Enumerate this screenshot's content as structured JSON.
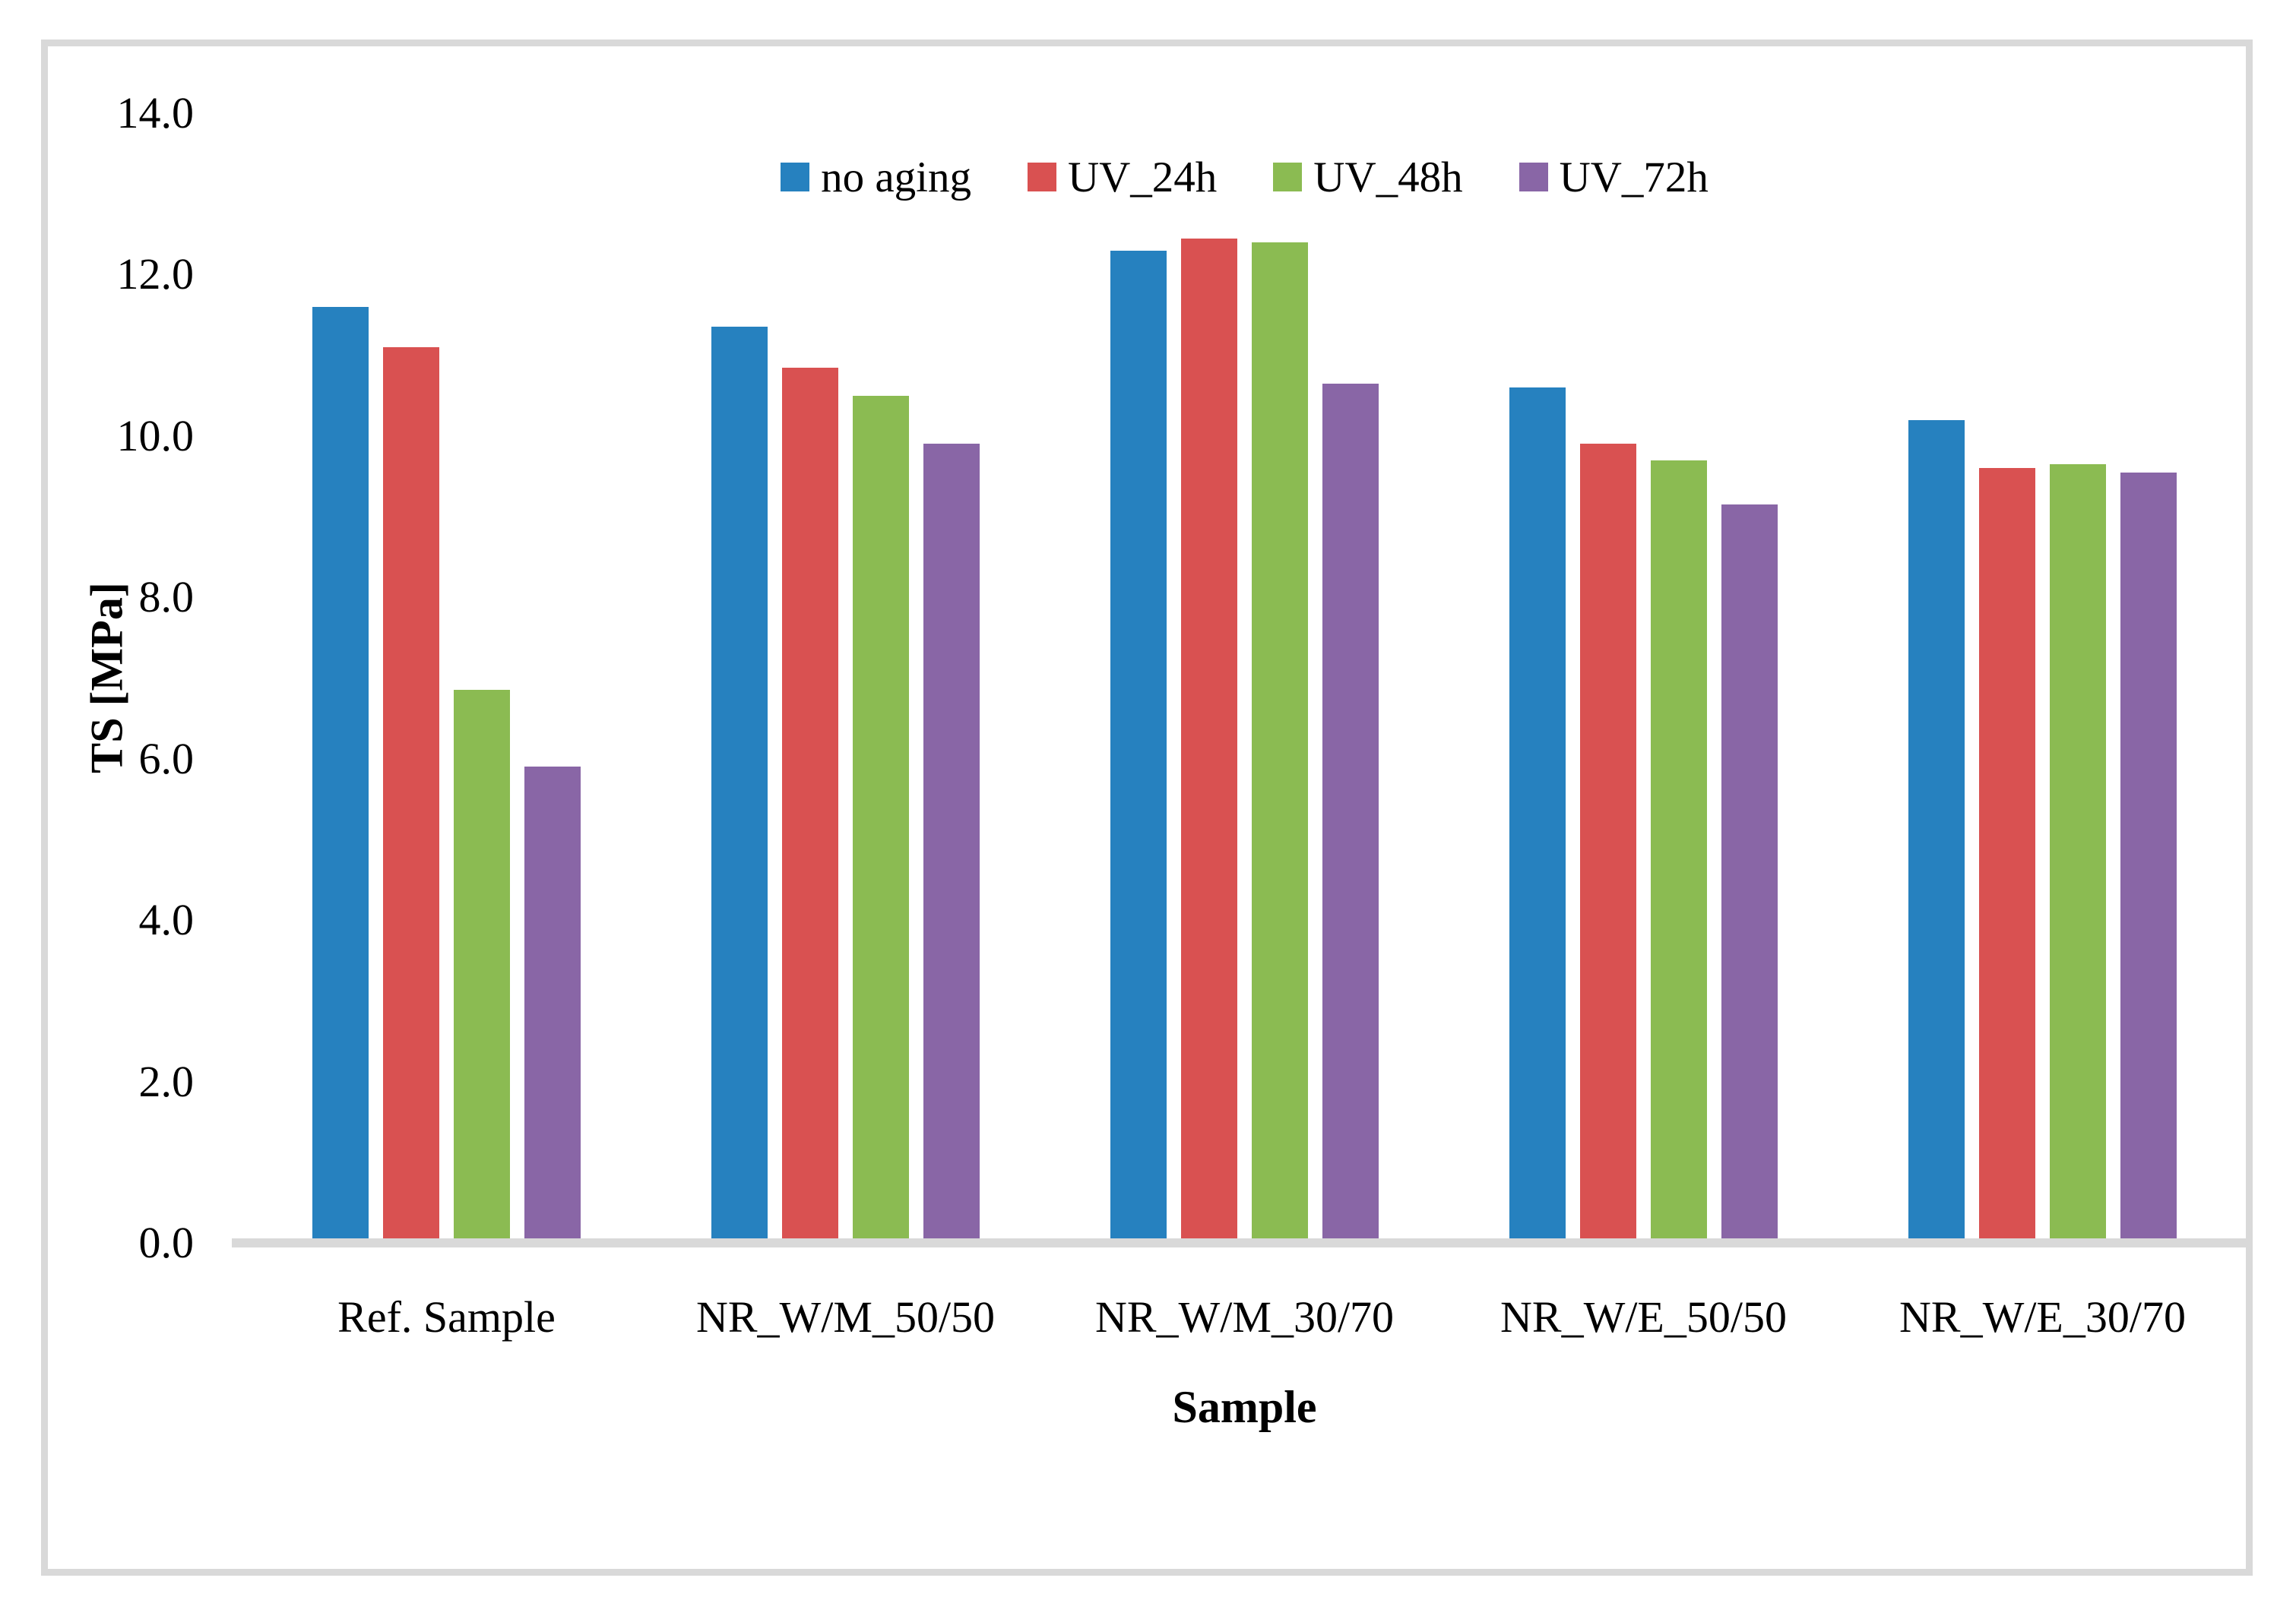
{
  "chart_data": {
    "type": "bar",
    "title": "",
    "xlabel": "Sample",
    "ylabel": "TS [MPa]",
    "ylim": [
      0,
      14.0
    ],
    "ytick_step": 2.0,
    "ytick_labels": [
      "0.0",
      "2.0",
      "4.0",
      "6.0",
      "8.0",
      "10.0",
      "12.0",
      "14.0"
    ],
    "grid": "off",
    "legend_position": "top-center",
    "categories": [
      "Ref. Sample",
      "NR_W/M_50/50",
      "NR_W/M_30/70",
      "NR_W/E_50/50",
      "NR_W/E_30/70"
    ],
    "series": [
      {
        "name": "no aging",
        "color": "#2681bf",
        "values": [
          11.6,
          11.35,
          12.3,
          10.6,
          10.2
        ]
      },
      {
        "name": "UV_24h",
        "color": "#d95151",
        "values": [
          11.1,
          10.85,
          12.45,
          9.9,
          9.6
        ]
      },
      {
        "name": "UV_48h",
        "color": "#8bbb52",
        "values": [
          6.85,
          10.5,
          12.4,
          9.7,
          9.65
        ]
      },
      {
        "name": "UV_72h",
        "color": "#8966a6",
        "values": [
          5.9,
          9.9,
          10.65,
          9.15,
          9.55
        ]
      }
    ],
    "axis_line_color": "#d9d9d9",
    "frame_color": "#d9d9d9",
    "text_color": "#000000"
  }
}
